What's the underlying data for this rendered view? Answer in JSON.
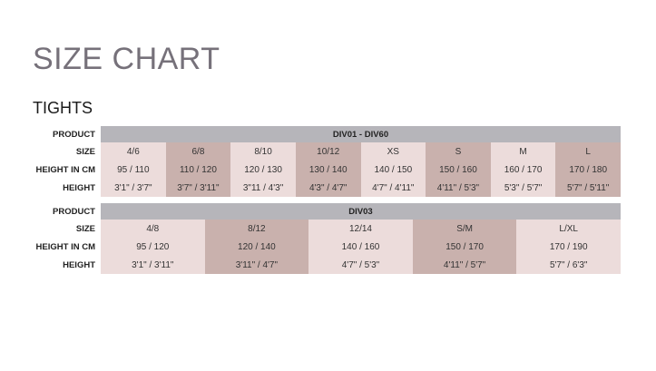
{
  "title": "SIZE CHART",
  "subtitle": "TIGHTS",
  "row_labels": {
    "product": "PRODUCT",
    "size": "SIZE",
    "height_cm": "HEIGHT IN CM",
    "height": "HEIGHT"
  },
  "colors": {
    "light_cell": "#ecdcdb",
    "dark_cell": "#c9b1ad",
    "header": "#b6b5ba",
    "title": "#76717a"
  },
  "tables": [
    {
      "product": "DIV01 - DIV60",
      "sizes": [
        "4/6",
        "6/8",
        "8/10",
        "10/12",
        "XS",
        "S",
        "M",
        "L"
      ],
      "height_cm": [
        "95 / 110",
        "110 / 120",
        "120 / 130",
        "130 / 140",
        "140 / 150",
        "150 / 160",
        "160 / 170",
        "170 / 180"
      ],
      "height": [
        "3'1\" / 3'7\"",
        "3'7\" / 3'11\"",
        "3\"11 / 4'3\"",
        "4'3\" / 4'7\"",
        "4'7\" / 4'11\"",
        "4'11\" / 5'3\"",
        "5'3\" / 5'7\"",
        "5'7\" / 5'11\""
      ]
    },
    {
      "product": "DIV03",
      "sizes": [
        "4/8",
        "8/12",
        "12/14",
        "S/M",
        "L/XL"
      ],
      "height_cm": [
        "95 / 120",
        "120 / 140",
        "140 / 160",
        "150 / 170",
        "170 / 190"
      ],
      "height": [
        "3'1\" / 3'11\"",
        "3'11\" / 4'7\"",
        "4'7\" / 5'3\"",
        "4'11\" / 5'7\"",
        "5'7\" / 6'3\""
      ]
    }
  ]
}
